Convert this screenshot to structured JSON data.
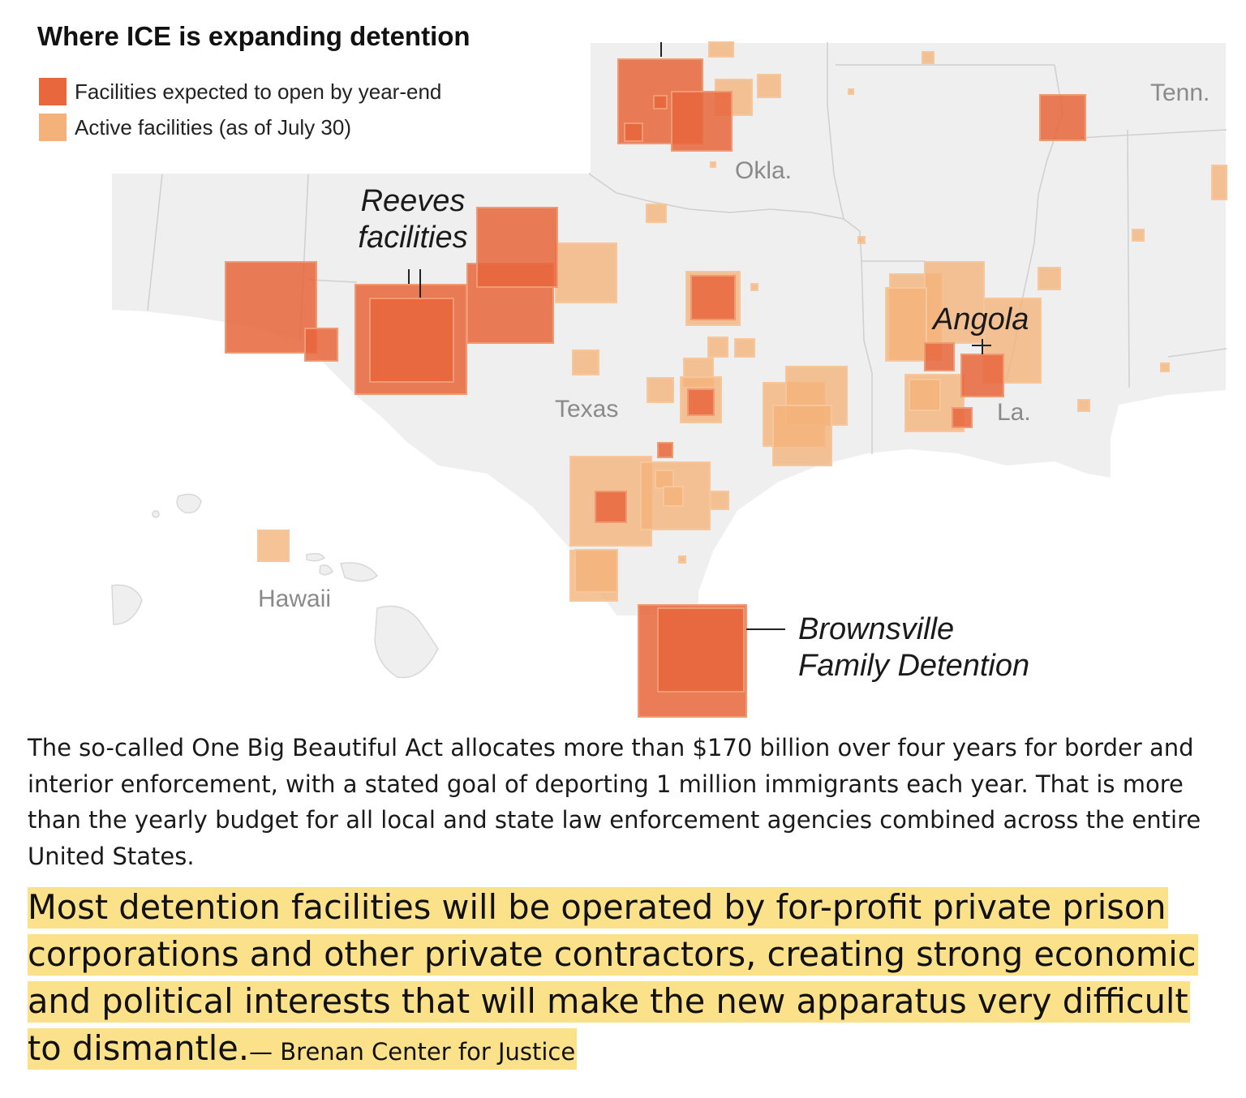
{
  "title": "Where ICE is expanding detention",
  "legend": {
    "planned": {
      "label": "Facilities expected to open by year-end",
      "color": "#e8673c"
    },
    "active": {
      "label": "Active facilities (as of July 30)",
      "color": "#f4b27a"
    }
  },
  "state_labels": {
    "tenn": "Tenn.",
    "okla": "Okla.",
    "texas": "Texas",
    "la": "La.",
    "hawaii": "Hawaii"
  },
  "callouts": {
    "reeves": [
      "Reeves",
      "facilities"
    ],
    "angola": "Angola",
    "brownsville": [
      "Brownsville",
      "Family Detention"
    ]
  },
  "body_text": "The so-called One Big Beautiful Act allocates more than $170 billion over four years for border and interior enforcement, with a stated goal of deporting 1 million immigrants each year. That is more than the yearly budget for all local and state law enforcement agencies combined across the entire United States.",
  "quote": {
    "text": "Most detention facilities will be operated by for-profit private prison corporations and other private contractors, creating strong economic and political interests that will make the new apparatus very difficult to dismantle.",
    "attribution": "— Brenan Center for Justice",
    "highlight_color": "#fbe28a"
  },
  "colors": {
    "land": "#efefef",
    "border": "#ffffff",
    "planned_fill": "#e8673c",
    "active_fill": "#f4b27a"
  }
}
